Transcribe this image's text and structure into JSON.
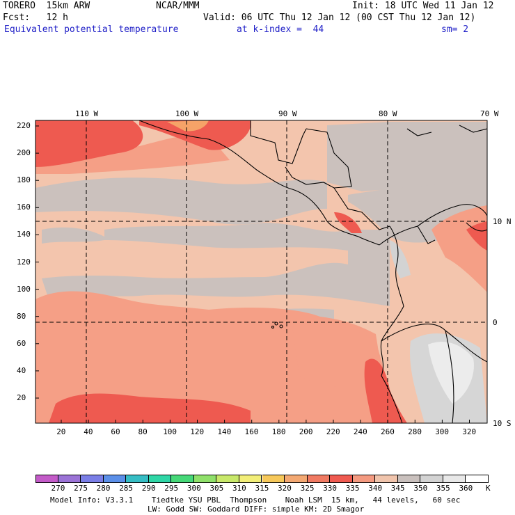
{
  "header": {
    "model": "TORERO  15km ARW",
    "org": "NCAR/MMM",
    "init": "Init: 18 UTC Wed 11 Jan 12",
    "fcst": "Fcst:   12 h",
    "valid": "Valid: 06 UTC Thu 12 Jan 12 (00 CST Thu 12 Jan 12)",
    "field": "Equivalent potential temperature",
    "level": "at k-index =  44",
    "smooth": "sm= 2"
  },
  "top_lon_labels": [
    "110 W",
    "100 W",
    "90 W",
    "80 W",
    "70 W"
  ],
  "right_lat_labels": [
    "10 N",
    "0",
    "10 S"
  ],
  "y_ticks": [
    "220",
    "200",
    "180",
    "160",
    "140",
    "120",
    "100",
    "80",
    "60",
    "40",
    "20"
  ],
  "x_ticks": [
    "20",
    "40",
    "60",
    "80",
    "100",
    "120",
    "140",
    "160",
    "180",
    "200",
    "220",
    "240",
    "260",
    "280",
    "300",
    "320"
  ],
  "colorbar": {
    "unit": "K",
    "levels": [
      "270",
      "275",
      "280",
      "285",
      "290",
      "295",
      "300",
      "305",
      "310",
      "315",
      "320",
      "325",
      "330",
      "335",
      "340",
      "345",
      "350",
      "355",
      "360"
    ],
    "colors": [
      "#c35bc8",
      "#9b73d6",
      "#7a7ee6",
      "#5b8fe8",
      "#36bdc4",
      "#2fd6a6",
      "#46d878",
      "#8fe06a",
      "#c8e86a",
      "#f2ee78",
      "#f6c85a",
      "#f3a872",
      "#f07a62",
      "#ef5a50",
      "#f49a80",
      "#f0c4ac",
      "#c9c0bd",
      "#d3d3d3",
      "#e8e8e8",
      "#ffffff"
    ]
  },
  "footer": {
    "line1": "Model Info: V3.3.1    Tiedtke YSU PBL  Thompson    Noah LSM  15 km,   44 levels,   60 sec",
    "line2": "LW: Godd SW: Goddard DIFF: simple KM: 2D Smagor"
  },
  "map_colors": {
    "base": "#f3c5ad",
    "grey": "#cbc1bd",
    "salmon": "#f59f86",
    "red": "#ee5a50",
    "orange": "#f6a368",
    "light": "#e6e6e6"
  }
}
